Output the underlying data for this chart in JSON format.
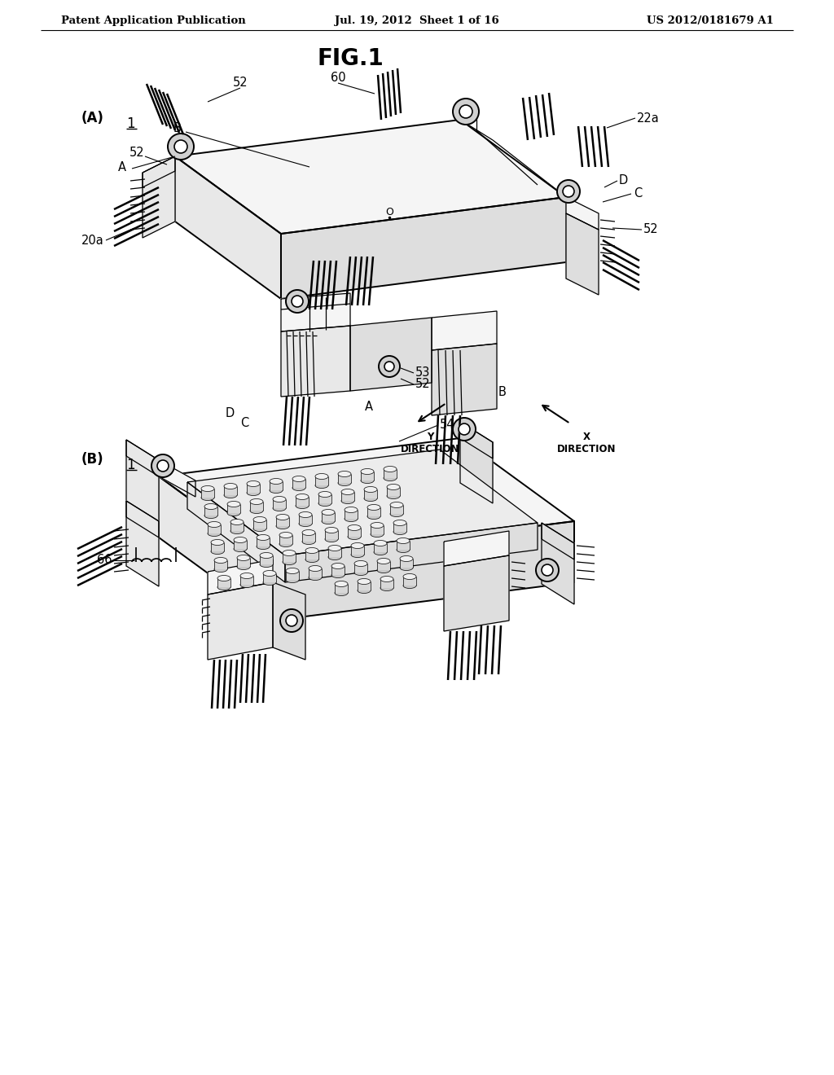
{
  "bg_color": "#ffffff",
  "header_left": "Patent Application Publication",
  "header_mid": "Jul. 19, 2012  Sheet 1 of 16",
  "header_right": "US 2012/0181679 A1",
  "fig_title": "FIG.1",
  "figsize": [
    10.24,
    13.2
  ],
  "dpi": 100,
  "lw_main": 1.4,
  "lw_thin": 0.9,
  "lw_pin": 1.8,
  "gray_top": "#f5f5f5",
  "gray_left": "#e8e8e8",
  "gray_right": "#dedede",
  "gray_dark": "#c8c8c8"
}
